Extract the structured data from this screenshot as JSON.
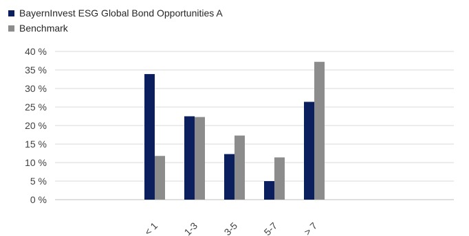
{
  "chart_data": {
    "type": "bar",
    "categories": [
      "",
      "",
      "< 1",
      "1-3",
      "3-5",
      "5-7",
      "> 7",
      "",
      "",
      ""
    ],
    "series": [
      {
        "name": "BayernInvest ESG Global Bond Opportunities A",
        "color": "#0b1f5e",
        "values": [
          null,
          null,
          33.9,
          22.5,
          12.3,
          5.0,
          26.4,
          null,
          null,
          null
        ]
      },
      {
        "name": "Benchmark",
        "color": "#8c8c8c",
        "values": [
          null,
          null,
          11.8,
          22.3,
          17.3,
          11.4,
          37.2,
          null,
          null,
          null
        ]
      }
    ],
    "yticks": [
      "0 %",
      "5 %",
      "10 %",
      "15 %",
      "20 %",
      "25 %",
      "30 %",
      "35 %",
      "40 %"
    ],
    "ylim": [
      0,
      40
    ],
    "grid": true,
    "legend": "top-left"
  }
}
